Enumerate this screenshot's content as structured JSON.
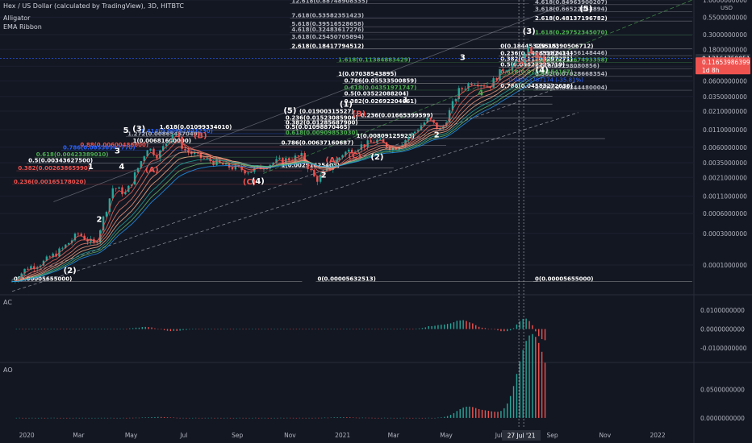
{
  "header": {
    "title": "Hex / US Dollar (calculated by TradingView), 3D, HITBTC",
    "indicators": [
      "Alligator",
      "EMA Ribbon"
    ],
    "currency": "USD"
  },
  "panes": {
    "ac_label": "AC",
    "ao_label": "AO"
  },
  "price_tags": [
    {
      "text": "0.13164759051",
      "bg": "#2a2e39",
      "fg": "#ffffff"
    },
    {
      "text": "0.11653986399",
      "bg": "#ef5350",
      "fg": "#ffffff"
    },
    {
      "text": "1d 8h",
      "bg": "#ef5350",
      "fg": "#ffffff"
    }
  ],
  "crosshair_date": "27 Jul '21",
  "colors": {
    "background": "#131722",
    "up": "#26a69a",
    "down": "#ef5350",
    "accent": "#2962ff"
  },
  "chart_data": [
    {
      "type": "candlestick",
      "title": "Hex / US Dollar (calculated by TradingView), 3D, HITBTC",
      "y_scale": "log",
      "ylim": [
        3.55e-05,
        1.0
      ],
      "x_ticks": [
        "2020",
        "Mar",
        "May",
        "Jul",
        "Sep",
        "Nov",
        "2021",
        "Mar",
        "May",
        "Jul",
        "Sep",
        "Nov",
        "2022"
      ],
      "y_ticks": [
        "1.0000000000",
        "0.5500000000",
        "0.3000000000",
        "0.1800000000",
        "0.1000000000",
        "0.0600000000",
        "0.0350000000",
        "0.0210000000",
        "0.0110000000",
        "0.0060000000",
        "0.0035000000",
        "0.0021000000",
        "0.0011000000",
        "0.0006000000",
        "0.0003000000",
        "0.0001000000"
      ],
      "price_path": [
        [
          "2019-12-15",
          5.65e-05
        ],
        [
          "2020-01-01",
          9e-05
        ],
        [
          "2020-01-20",
          0.00011
        ],
        [
          "2020-02-10",
          0.00017
        ],
        [
          "2020-03-01",
          0.0003
        ],
        [
          "2020-03-20",
          0.0002
        ],
        [
          "2020-04-10",
          0.0015
        ],
        [
          "2020-04-25",
          0.0012
        ],
        [
          "2020-05-20",
          0.006
        ],
        [
          "2020-06-01",
          0.0045
        ],
        [
          "2020-06-20",
          0.0108
        ],
        [
          "2020-07-01",
          0.0055
        ],
        [
          "2020-07-20",
          0.0042
        ],
        [
          "2020-08-20",
          0.0031
        ],
        [
          "2020-09-15",
          0.0026
        ],
        [
          "2020-10-15",
          0.0036
        ],
        [
          "2020-11-15",
          0.0044
        ],
        [
          "2020-12-01",
          0.0019
        ],
        [
          "2020-12-15",
          0.0027
        ],
        [
          "2021-01-01",
          0.0048
        ],
        [
          "2021-01-20",
          0.0062
        ],
        [
          "2021-02-10",
          0.0075
        ],
        [
          "2021-03-01",
          0.0058
        ],
        [
          "2021-03-20",
          0.0088
        ],
        [
          "2021-04-10",
          0.016
        ],
        [
          "2021-04-25",
          0.0105
        ],
        [
          "2021-05-15",
          0.042
        ],
        [
          "2021-06-01",
          0.06
        ],
        [
          "2021-06-20",
          0.05
        ],
        [
          "2021-07-05",
          0.09
        ],
        [
          "2021-07-27",
          0.116
        ],
        [
          "2021-08-05",
          0.185
        ],
        [
          "2021-08-15",
          0.1316
        ],
        [
          "2021-08-25",
          0.1165
        ]
      ],
      "overlays": [
        "Alligator",
        "EMA Ribbon"
      ],
      "fib_levels": [
        {
          "text": "1(0.00681600000)",
          "price": 0.006816,
          "color": "#ffffff",
          "from": "2020-05-01",
          "to": "2020-11-15"
        },
        {
          "text": "0.88(0.00600486600)",
          "price": 0.006,
          "color": "#ef5350",
          "from": "2020-03-01",
          "to": "2020-11-15"
        },
        {
          "text": "0.786(0.00536947770)",
          "price": 0.00537,
          "color": "#2962ff",
          "from": "2020-02-10",
          "to": "2020-11-15"
        },
        {
          "text": "0.618(0.00423389010)",
          "price": 0.00423,
          "color": "#4caf50",
          "from": "2020-01-10",
          "to": "2020-11-15"
        },
        {
          "text": "0.5(0.00343627500)",
          "price": 0.00344,
          "color": "#ffffff",
          "from": "2020-01-01",
          "to": "2020-11-15"
        },
        {
          "text": "0.382(0.00263865990)",
          "price": 0.00264,
          "color": "#ef5350",
          "from": "2019-12-20",
          "to": "2020-11-15"
        },
        {
          "text": "0.236(0.00165178020)",
          "price": 0.00165,
          "color": "#ef5350",
          "from": "2019-12-15",
          "to": "2020-11-15"
        },
        {
          "text": "0(0.00005655000)",
          "price": 5.65e-05,
          "color": "#ffffff",
          "from": "2019-12-15",
          "to": "2020-11-15"
        },
        {
          "text": "1.618(0.01099334010)",
          "price": 0.01099,
          "color": "#ffffff",
          "from": "2020-06-01",
          "to": "2020-11-15"
        },
        {
          "text": "1.414(0.00961441230)",
          "price": 0.00961,
          "color": "#2962ff",
          "from": "2020-05-10",
          "to": "2020-11-15"
        },
        {
          "text": "1.272(0.00865457040)",
          "price": 0.00865,
          "color": "#b2b5be",
          "from": "2020-04-25",
          "to": "2020-11-15"
        },
        {
          "text": "(0.01900315527)",
          "price": 0.019,
          "color": "#ffffff",
          "from": "2020-11-10",
          "to": "2021-05-01"
        },
        {
          "text": "0.236(0.01523085906)",
          "price": 0.01523,
          "color": "#ffffff",
          "from": "2020-10-25",
          "to": "2021-05-01"
        },
        {
          "text": "0.382(0.01285687900)",
          "price": 0.01286,
          "color": "#ffffff",
          "from": "2020-10-25",
          "to": "2021-05-01"
        },
        {
          "text": "0.5(0.01098870465)",
          "price": 0.01099,
          "color": "#ffffff",
          "from": "2020-10-25",
          "to": "2021-05-01"
        },
        {
          "text": "0.618(0.00909853030)",
          "price": 0.0091,
          "color": "#4caf50",
          "from": "2020-10-25",
          "to": "2021-05-01"
        },
        {
          "text": "0.786(0.00637160687)",
          "price": 0.00637,
          "color": "#ffffff",
          "from": "2020-10-20",
          "to": "2021-05-01"
        },
        {
          "text": "1(0.00291625403)",
          "price": 0.00292,
          "color": "#ffffff",
          "from": "2020-10-20",
          "to": "2021-03-01"
        },
        {
          "text": "0(0.00005632513)",
          "price": 5.63e-05,
          "color": "#ffffff",
          "from": "2020-12-01",
          "to": "2021-08-15"
        },
        {
          "text": "1.618(0.11384883429)",
          "price": 0.1138,
          "color": "#4caf50",
          "from": "2020-12-25",
          "to": "2021-09-01"
        },
        {
          "text": "1(0.07038543895)",
          "price": 0.0704,
          "color": "#ffffff",
          "from": "2020-12-25",
          "to": "2021-09-01"
        },
        {
          "text": "0.786(0.05533500859)",
          "price": 0.0553,
          "color": "#ffffff",
          "from": "2021-01-01",
          "to": "2021-09-01"
        },
        {
          "text": "0.618(0.04351971747)",
          "price": 0.0435,
          "color": "#4caf50",
          "from": "2021-01-01",
          "to": "2021-09-01"
        },
        {
          "text": "0.5(0.03522088204)",
          "price": 0.0352,
          "color": "#ffffff",
          "from": "2021-01-01",
          "to": "2021-09-01"
        },
        {
          "text": "0.382(0.02692204661)",
          "price": 0.0269,
          "color": "#ffffff",
          "from": "2021-01-01",
          "to": "2021-09-01"
        },
        {
          "text": "0.236(0.01665399599)",
          "price": 0.01665,
          "color": "#ffffff",
          "from": "2021-01-20",
          "to": "2021-09-01"
        },
        {
          "text": "1(0.00809125923)",
          "price": 0.00809,
          "color": "#ffffff",
          "from": "2021-01-15",
          "to": "2021-11-01"
        },
        {
          "text": "12.618(0.88748908335)",
          "price": 0.8875,
          "color": "#b2b5be",
          "from": "2020-11-01",
          "to": "2021-08-05"
        },
        {
          "text": "7.618(0.53582351423)",
          "price": 0.5358,
          "color": "#b2b5be",
          "from": "2020-11-01",
          "to": "2021-08-05"
        },
        {
          "text": "5.618(0.39516528658)",
          "price": 0.3952,
          "color": "#b2b5be",
          "from": "2020-11-01",
          "to": "2021-08-05"
        },
        {
          "text": "4.618(0.32483617276)",
          "price": 0.3248,
          "color": "#b2b5be",
          "from": "2020-11-01",
          "to": "2021-08-05"
        },
        {
          "text": "3.618(0.25450705894)",
          "price": 0.2545,
          "color": "#b2b5be",
          "from": "2020-11-01",
          "to": "2021-08-05"
        },
        {
          "text": "2.618(0.18417794512)",
          "price": 0.1842,
          "color": "#ffffff",
          "from": "2020-11-01",
          "to": "2021-08-05"
        },
        {
          "text": "4.618(0.84963900207)",
          "price": 0.8496,
          "color": "#b2b5be",
          "from": "2021-08-10",
          "to": "2022-02-10"
        },
        {
          "text": "3.618(0.66522048894)",
          "price": 0.6652,
          "color": "#b2b5be",
          "from": "2021-08-10",
          "to": "2022-02-10"
        },
        {
          "text": "2.618(0.48137196782)",
          "price": 0.4814,
          "color": "#ffffff",
          "from": "2021-08-10",
          "to": "2022-02-10"
        },
        {
          "text": "1.618(0.29752345070)",
          "price": 0.2975,
          "color": "#4caf50",
          "from": "2021-08-10",
          "to": "2022-02-10"
        },
        {
          "text": "1(0.18390506712)",
          "price": 0.1839,
          "color": "#ffffff",
          "from": "2021-08-10",
          "to": "2022-02-10"
        },
        {
          "text": "0.786(0.14456148446)",
          "price": 0.1446,
          "color": "#b2b5be",
          "from": "2021-08-10",
          "to": "2022-02-10"
        },
        {
          "text": "0.618(0.11367493358)",
          "price": 0.1137,
          "color": "#4caf50",
          "from": "2021-08-10",
          "to": "2022-02-10"
        },
        {
          "text": "0.5(0.09198080856)",
          "price": 0.092,
          "color": "#b2b5be",
          "from": "2021-08-10",
          "to": "2022-02-10"
        },
        {
          "text": "0.382(0.07028668354)",
          "price": 0.0703,
          "color": "#b2b5be",
          "from": "2021-08-10",
          "to": "2022-02-10"
        },
        {
          "text": "0.236(0.04344480004)",
          "price": 0.0434,
          "color": "#b2b5be",
          "from": "2021-08-10",
          "to": "2022-02-10"
        },
        {
          "text": "0(0.00005655000)",
          "price": 5.65e-05,
          "color": "#ffffff",
          "from": "2021-08-10",
          "to": "2022-02-10"
        },
        {
          "text": "0(0.18445325515)",
          "price": 0.1845,
          "color": "#ffffff",
          "from": "2021-07-01",
          "to": "2021-10-01"
        },
        {
          "text": "0.236(0.14283182411)",
          "price": 0.1428,
          "color": "#ffffff",
          "from": "2021-07-01",
          "to": "2021-10-01"
        },
        {
          "text": "0.382(0.11708297271)",
          "price": 0.1171,
          "color": "#ffffff",
          "from": "2021-07-01",
          "to": "2021-10-01"
        },
        {
          "text": "0.5(0.09627225719)",
          "price": 0.0963,
          "color": "#ffffff",
          "from": "2021-07-01",
          "to": "2021-10-01"
        },
        {
          "text": "0.618(0.07546154167)",
          "price": 0.0755,
          "color": "#4caf50",
          "from": "2021-07-01",
          "to": "2021-10-01"
        },
        {
          "text": "0.786(0.04583272636)",
          "price": 0.0458,
          "color": "#ffffff",
          "from": "2021-07-01",
          "to": "2021-10-01"
        }
      ],
      "wave_labels": [
        {
          "text": "(2)",
          "date": "2020-02-20",
          "price": 7.6e-05,
          "color": "#ffffff"
        },
        {
          "text": "1",
          "date": "2020-03-15",
          "price": 0.0028,
          "color": "#ffffff"
        },
        {
          "text": "2",
          "date": "2020-03-25",
          "price": 0.00045,
          "color": "#ffffff"
        },
        {
          "text": "3",
          "date": "2020-04-15",
          "price": 0.0048,
          "color": "#ffffff"
        },
        {
          "text": "4",
          "date": "2020-04-20",
          "price": 0.0028,
          "color": "#ffffff"
        },
        {
          "text": "5",
          "date": "2020-04-25",
          "price": 0.0098,
          "color": "#ffffff"
        },
        {
          "text": "(3)",
          "date": "2020-05-10",
          "price": 0.0105,
          "color": "#ffffff"
        },
        {
          "text": "(A)",
          "date": "2020-05-25",
          "price": 0.0025,
          "color": "#ef5350"
        },
        {
          "text": "(B)",
          "date": "2020-07-20",
          "price": 0.0082,
          "color": "#ef5350"
        },
        {
          "text": "(C)",
          "date": "2020-09-15",
          "price": 0.00165,
          "color": "#ef5350"
        },
        {
          "text": "(4)",
          "date": "2020-09-25",
          "price": 0.0017,
          "color": "#ffffff"
        },
        {
          "text": "(5)",
          "date": "2020-11-01",
          "price": 0.0195,
          "color": "#ffffff"
        },
        {
          "text": "(1)",
          "date": "2021-01-05",
          "price": 0.0245,
          "color": "#ffffff"
        },
        {
          "text": "(B)",
          "date": "2021-01-20",
          "price": 0.0175,
          "color": "#ef5350"
        },
        {
          "text": "(A)",
          "date": "2020-12-20",
          "price": 0.0035,
          "color": "#ef5350"
        },
        {
          "text": "(C)",
          "date": "2021-01-15",
          "price": 0.0041,
          "color": "#ef5350"
        },
        {
          "text": "(2)",
          "date": "2021-02-10",
          "price": 0.0039,
          "color": "#ffffff"
        },
        {
          "text": "2",
          "date": "2020-12-10",
          "price": 0.0021,
          "color": "#ffffff"
        },
        {
          "text": "1",
          "date": "2021-03-15",
          "price": 0.028,
          "color": "#ffffff"
        },
        {
          "text": "2",
          "date": "2021-04-20",
          "price": 0.0085,
          "color": "#ffffff"
        },
        {
          "text": "3",
          "date": "2021-05-20",
          "price": 0.125,
          "color": "#ffffff"
        },
        {
          "text": "4",
          "date": "2021-06-10",
          "price": 0.036,
          "color": "#4caf50"
        },
        {
          "text": "(3)",
          "date": "2021-08-05",
          "price": 0.31,
          "color": "#ffffff"
        },
        {
          "text": "(4)",
          "date": "2021-08-20",
          "price": 0.081,
          "color": "#ffffff"
        },
        {
          "text": "(5)",
          "date": "2021-10-10",
          "price": 0.68,
          "color": "#ffffff"
        }
      ],
      "annotations": [
        {
          "text": "-0.04063787174 (-35.81%)",
          "date": "2021-07-10",
          "price": 0.0585,
          "color": "#2962ff"
        }
      ]
    },
    {
      "type": "bar",
      "title": "AC",
      "y_ticks": [
        "0.0100000000",
        "0.0000000000",
        "-0.0100000000"
      ],
      "ylim": [
        -0.016,
        0.016
      ],
      "series": [
        {
          "values_by_date": [
            [
              "2020-05-20",
              0.0011
            ],
            [
              "2020-06-15",
              -0.0012
            ],
            [
              "2021-04-20",
              0.0018
            ],
            [
              "2021-05-20",
              0.0046
            ],
            [
              "2021-07-20",
              -0.0036
            ],
            [
              "2021-08-05",
              0.0155
            ],
            [
              "2021-08-15",
              -0.0135
            ]
          ]
        }
      ]
    },
    {
      "type": "bar",
      "title": "AO",
      "y_ticks": [
        "0.0500000000",
        "0.0000000000"
      ],
      "ylim": [
        -0.01,
        0.09
      ],
      "series": [
        {
          "values_by_date": [
            [
              "2020-06-01",
              0.0015
            ],
            [
              "2021-01-01",
              0.0012
            ],
            [
              "2021-05-25",
              0.019
            ],
            [
              "2021-06-20",
              0.01
            ],
            [
              "2021-07-27",
              0.035
            ],
            [
              "2021-08-05",
              0.085
            ],
            [
              "2021-08-20",
              0.072
            ]
          ]
        }
      ]
    }
  ]
}
